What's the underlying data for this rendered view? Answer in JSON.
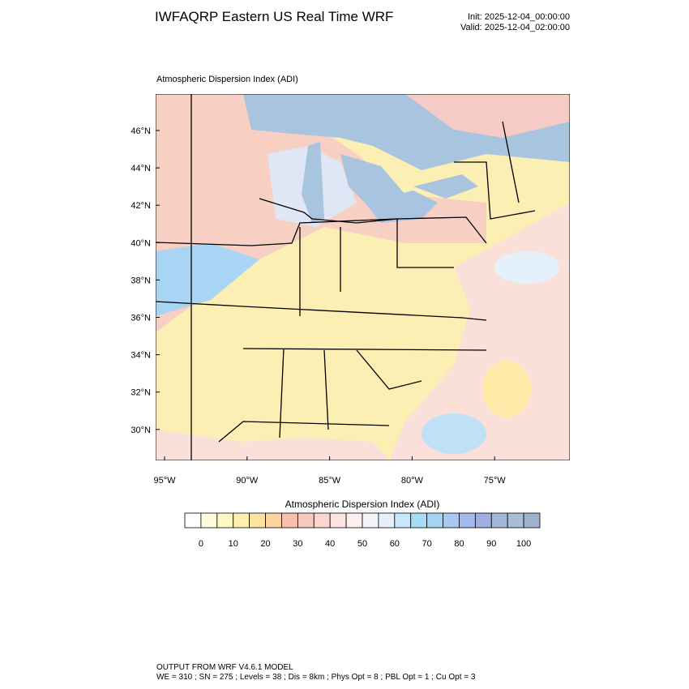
{
  "header": {
    "title": "IWFAQRP Eastern US Real Time WRF",
    "init": "Init: 2025-12-04_00:00:00",
    "valid": "Valid: 2025-12-04_02:00:00"
  },
  "map": {
    "label": "Atmospheric Dispersion Index   (ADI)",
    "lat_labels": [
      "46°N",
      "44°N",
      "42°N",
      "40°N",
      "38°N",
      "36°N",
      "34°N",
      "32°N",
      "30°N"
    ],
    "lon_labels": [
      "95°W",
      "90°W",
      "85°W",
      "80°W",
      "75°W"
    ]
  },
  "colorbar": {
    "title": "Atmospheric Dispersion Index  (ADI)",
    "labels": [
      "0",
      "10",
      "20",
      "30",
      "40",
      "50",
      "60",
      "70",
      "80",
      "90",
      "100"
    ],
    "colors": [
      "#ffffff",
      "#fffde0",
      "#fff8c4",
      "#fdf0b0",
      "#fde3a0",
      "#fbd4a0",
      "#f8bfae",
      "#f7c9c1",
      "#fad6cf",
      "#fce4df",
      "#fdf0ee",
      "#f4f4fb",
      "#e6f0fb",
      "#c9e6fa",
      "#a7dcf7",
      "#a6d2f4",
      "#a6c8f2",
      "#a3b9ee",
      "#a0aee4",
      "#a3b6d7",
      "#a9bed6",
      "#9fb4cc"
    ]
  },
  "footer": {
    "line1": "OUTPUT FROM WRF V4.6.1 MODEL",
    "line2": "WE = 310 ; SN = 275 ; Levels = 38 ; Dis = 8km ; Phys Opt = 8 ; PBL Opt = 1 ; Cu Opt = 3"
  }
}
